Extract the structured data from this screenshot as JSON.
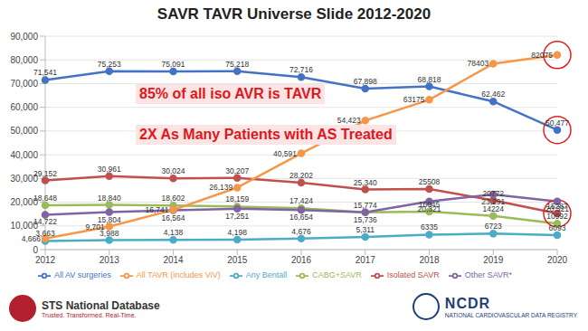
{
  "chart_data": {
    "type": "line",
    "title": "SAVR TAVR Universe Slide 2012-2020",
    "categories": [
      "2012",
      "2013",
      "2014",
      "2015",
      "2016",
      "2017",
      "2018",
      "2019",
      "2020"
    ],
    "series": [
      {
        "name": "All AV surgeries",
        "color": "#4472c4",
        "marker": "circle",
        "values": [
          71541,
          75253,
          75091,
          75218,
          72716,
          67898,
          68818,
          62462,
          50477
        ],
        "value_labels": [
          "71,541",
          "75,253",
          "75,091",
          "75,218",
          "72,716",
          "67,898",
          "68,818",
          "62,462",
          "50,477"
        ]
      },
      {
        "name": "Isolated SAVR",
        "color": "#c0504d",
        "marker": "circle",
        "values": [
          29152,
          30961,
          30024,
          30207,
          28202,
          25340,
          25508,
          20772,
          15287
        ],
        "value_labels": [
          "29,152",
          "30,961",
          "30,024",
          "30,207",
          "28,202",
          "25,340",
          "25508",
          "20772",
          "15287"
        ]
      },
      {
        "name": "CABG+SAVR",
        "color": "#9bbb59",
        "marker": "circle",
        "values": [
          18648,
          18840,
          18602,
          18159,
          17424,
          15774,
          16045,
          14224,
          10992
        ],
        "value_labels": [
          "18,648",
          "18,840",
          "18,602",
          "18,159",
          "17,424",
          "15,774",
          "16045",
          "14224",
          "10992"
        ]
      },
      {
        "name": "Other SAVR*",
        "color": "#8064a2",
        "marker": "circle",
        "values": [
          14722,
          15804,
          16564,
          17251,
          16654,
          15736,
          20321,
          23291,
          20321
        ],
        "value_labels": [
          "14,722",
          "15,804",
          "16,564",
          "17,251",
          "16,654",
          "15,736",
          "20,321",
          "23,291",
          "20,321"
        ]
      },
      {
        "name": "Any Bentall",
        "color": "#4bacc6",
        "marker": "circle",
        "values": [
          3663,
          3988,
          4138,
          4198,
          4676,
          5311,
          6335,
          6723,
          6093
        ],
        "value_labels": [
          "3,663",
          "3,988",
          "4,138",
          "4,198",
          "4,676",
          "5,311",
          "6335",
          "6723",
          "6093"
        ]
      },
      {
        "name": "All TAVR (includes ViV)",
        "color": "#f79646",
        "marker": "circle",
        "values": [
          4666,
          9701,
          16741,
          26139,
          40591,
          54423,
          63175,
          78403,
          82075
        ],
        "value_labels": [
          "4,666",
          "9,701",
          "16,741",
          "26,139",
          "40,591",
          "54,423",
          "63175",
          "78403",
          "82075"
        ]
      }
    ],
    "ylim": [
      0,
      90000
    ],
    "yticks": [
      0,
      {
        "value": 10000,
        "label": "10,000"
      },
      {
        "value": 20000,
        "label": "20,000"
      },
      {
        "value": 30000,
        "label": "30,000"
      },
      {
        "value": 40000,
        "label": "40,000"
      },
      {
        "value": 50000,
        "label": "50,000"
      },
      {
        "value": 60000,
        "label": "60,000"
      },
      {
        "value": 70000,
        "label": "70,000"
      },
      {
        "value": 80000,
        "label": "80,000"
      },
      {
        "value": 90000,
        "label": "90,000"
      }
    ],
    "grid": true,
    "legend": "bottom",
    "data_labels": true,
    "annotations": [
      "85% of all iso AVR is TAVR",
      "2X As Many Patients with AS Treated"
    ]
  },
  "footer": {
    "left": [
      "STS National Database",
      "Trusted. Transformed. Real-Time."
    ],
    "right": [
      "NCDR",
      "NATIONAL CARDIOVASCULAR DATA REGISTRY"
    ]
  }
}
